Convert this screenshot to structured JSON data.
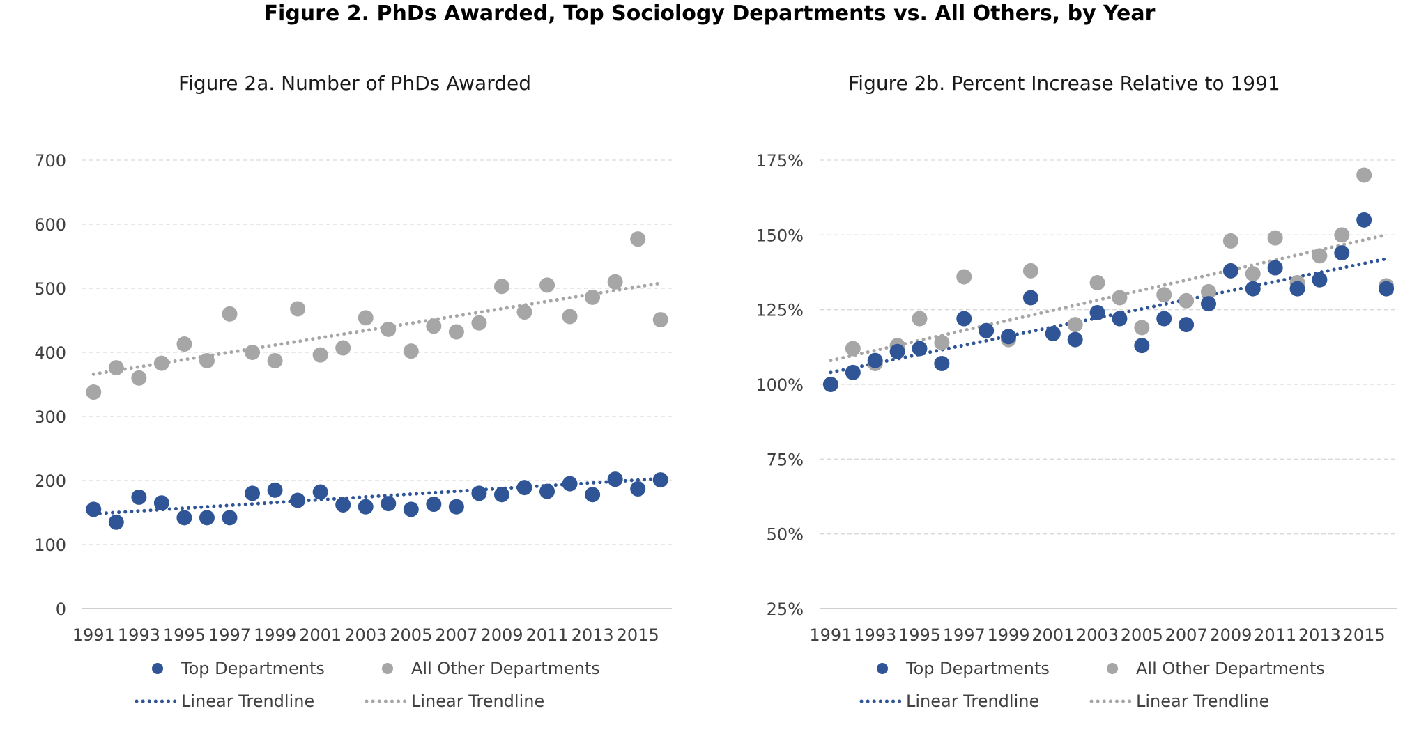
{
  "title": "Figure 2. PhDs Awarded, Top Sociology Departments vs. All Others, by Year",
  "colors": {
    "top": "#2F5597",
    "other": "#A6A6A6",
    "grid": "#D9D9D9",
    "axis": "#BFBFBF",
    "text": "#404040"
  },
  "chart_data": [
    {
      "type": "scatter",
      "title": "Figure 2a. Number of PhDs Awarded",
      "xlabel": "",
      "ylabel": "",
      "x": [
        1991,
        1992,
        1993,
        1994,
        1995,
        1996,
        1997,
        1998,
        1999,
        2000,
        2001,
        2002,
        2003,
        2004,
        2005,
        2006,
        2007,
        2008,
        2009,
        2010,
        2011,
        2012,
        2013,
        2014,
        2015,
        2016
      ],
      "xticks": [
        "1991",
        "1993",
        "1995",
        "1997",
        "1999",
        "2001",
        "2003",
        "2005",
        "2007",
        "2009",
        "2011",
        "2013",
        "2015"
      ],
      "yticks": [
        "0",
        "100",
        "200",
        "300",
        "400",
        "500",
        "600",
        "700"
      ],
      "ylim": [
        0,
        700
      ],
      "grid": true,
      "legend": "bottom",
      "series": [
        {
          "name": "Top Departments",
          "key": "top",
          "values": [
            155,
            135,
            174,
            165,
            142,
            142,
            142,
            180,
            185,
            169,
            182,
            162,
            159,
            164,
            155,
            163,
            159,
            180,
            178,
            189,
            183,
            195,
            178,
            202,
            187,
            201
          ],
          "trend": [
            148,
            203
          ]
        },
        {
          "name": "All Other Departments",
          "key": "other",
          "values": [
            338,
            376,
            360,
            383,
            413,
            387,
            460,
            400,
            387,
            468,
            396,
            407,
            454,
            436,
            402,
            441,
            432,
            446,
            503,
            463,
            505,
            456,
            486,
            510,
            577,
            451
          ],
          "trend": [
            366,
            508
          ]
        }
      ],
      "legend_labels": {
        "top": "Top Departments",
        "other": "All Other Departments",
        "trend_top": "Linear Trendline",
        "trend_other": "Linear Trendline"
      }
    },
    {
      "type": "scatter",
      "title": "Figure 2b. Percent Increase Relative to 1991",
      "xlabel": "",
      "ylabel": "",
      "x": [
        1991,
        1992,
        1993,
        1994,
        1995,
        1996,
        1997,
        1998,
        1999,
        2000,
        2001,
        2002,
        2003,
        2004,
        2005,
        2006,
        2007,
        2008,
        2009,
        2010,
        2011,
        2012,
        2013,
        2014,
        2015,
        2016
      ],
      "xticks": [
        "1991",
        "1993",
        "1995",
        "1997",
        "1999",
        "2001",
        "2003",
        "2005",
        "2007",
        "2009",
        "2011",
        "2013",
        "2015"
      ],
      "yticks": [
        "25%",
        "50%",
        "75%",
        "100%",
        "125%",
        "150%",
        "175%"
      ],
      "ylim": [
        25,
        175
      ],
      "grid": true,
      "legend": "bottom",
      "series": [
        {
          "name": "Top Departments",
          "key": "top",
          "values": [
            100,
            104,
            108,
            111,
            112,
            107,
            122,
            118,
            116,
            129,
            117,
            115,
            124,
            122,
            113,
            122,
            120,
            127,
            138,
            132,
            139,
            132,
            135,
            144,
            155,
            132
          ],
          "trend": [
            104,
            142
          ]
        },
        {
          "name": "All Other Departments",
          "key": "other",
          "values": [
            100,
            112,
            107,
            113,
            122,
            114,
            136,
            118,
            115,
            138,
            117,
            120,
            134,
            129,
            119,
            130,
            128,
            131,
            148,
            137,
            149,
            134,
            143,
            150,
            170,
            133
          ],
          "trend": [
            108,
            150
          ]
        }
      ],
      "legend_labels": {
        "top": "Top Departments",
        "other": "All Other Departments",
        "trend_top": "Linear Trendline",
        "trend_other": "Linear Trendline"
      }
    }
  ]
}
